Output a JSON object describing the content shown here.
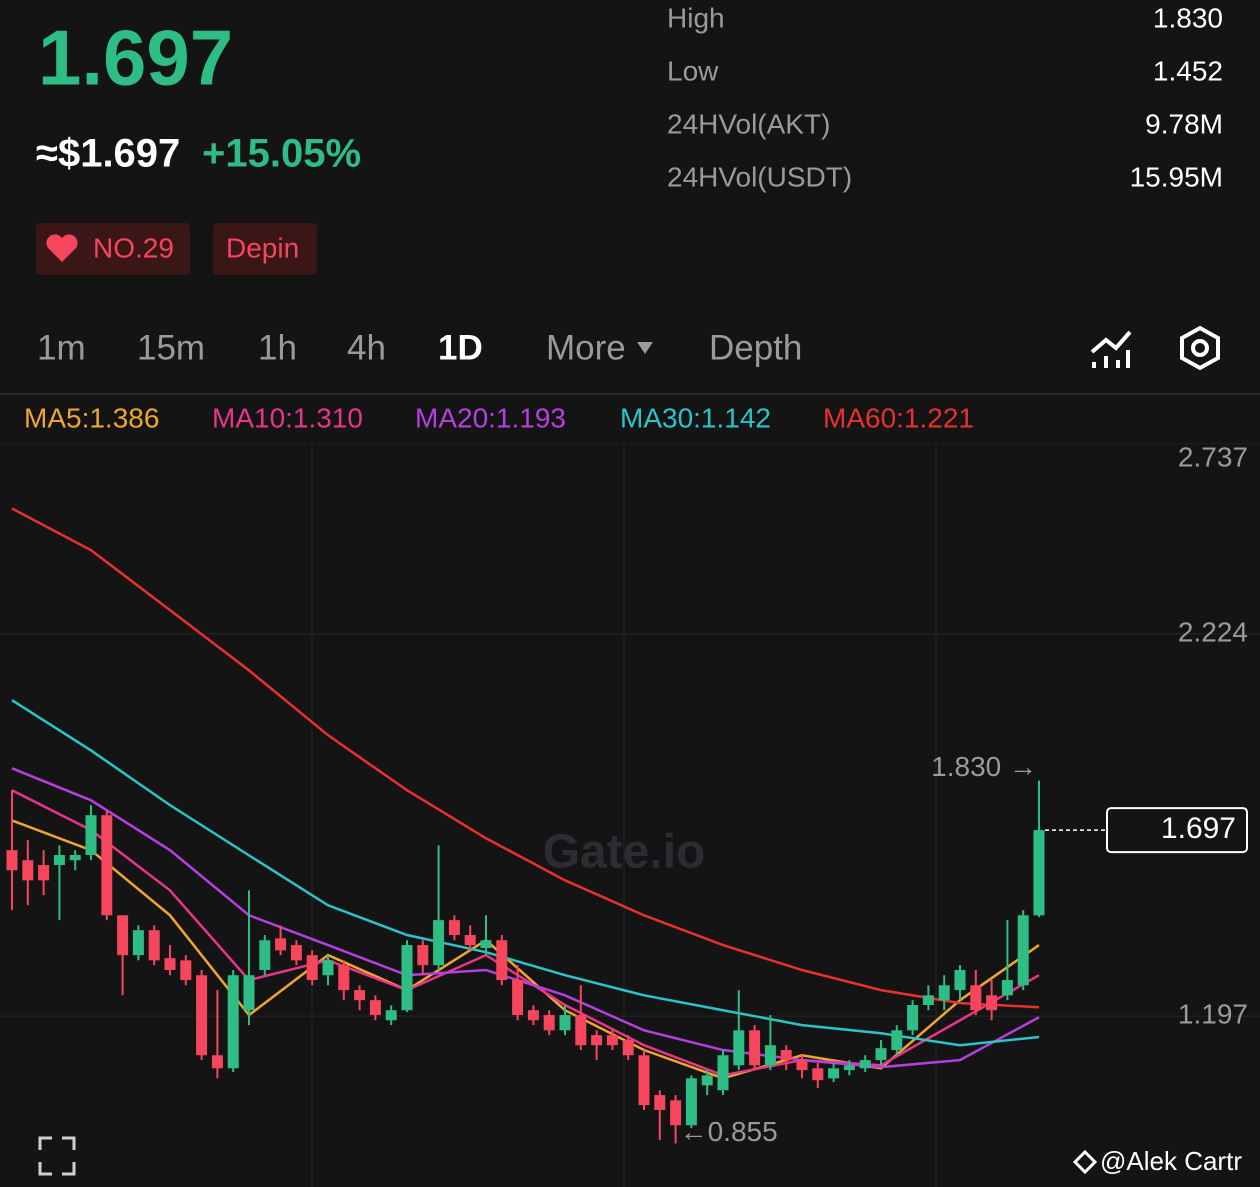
{
  "header": {
    "price": "1.697",
    "usd_price": "≈$1.697",
    "change": "+15.05%",
    "rank": "NO.29",
    "tag": "Depin"
  },
  "stats": [
    {
      "label": "High",
      "value": "1.830"
    },
    {
      "label": "Low",
      "value": "1.452"
    },
    {
      "label": "24HVol(AKT)",
      "value": "9.78M"
    },
    {
      "label": "24HVol(USDT)",
      "value": "15.95M"
    }
  ],
  "tabs": [
    "1m",
    "15m",
    "1h",
    "4h",
    "1D",
    "More",
    "Depth"
  ],
  "watermark": "Gate.io",
  "credit": "@Alek Cartr",
  "chart_data": {
    "type": "candlestick",
    "ylim": [
      0.738,
      2.737
    ],
    "yticks": [
      2.737,
      2.224,
      1.197
    ],
    "grid": true,
    "up_color": "#2ebd85",
    "down_color": "#f6465d",
    "open": [
      1.643,
      1.616,
      1.603,
      1.603,
      1.616,
      1.63,
      1.737,
      1.468,
      1.361,
      1.428,
      1.353,
      1.347,
      1.307,
      1.092,
      1.057,
      1.213,
      1.321,
      1.406,
      1.388,
      1.361,
      1.307,
      1.334,
      1.267,
      1.24,
      1.186,
      1.213,
      1.388,
      1.334,
      1.455,
      1.415,
      1.38,
      1.401,
      1.294,
      1.213,
      1.2,
      1.159,
      1.2,
      1.146,
      1.146,
      1.133,
      1.092,
      0.985,
      0.971,
      0.904,
      1.011,
      0.998,
      1.065,
      1.159,
      1.065,
      1.106,
      1.079,
      1.057,
      1.03,
      1.052,
      1.057,
      1.079,
      1.106,
      1.159,
      1.227,
      1.24,
      1.267,
      1.28,
      1.253,
      1.253,
      1.28,
      1.468
    ],
    "high": [
      1.804,
      1.67,
      1.643,
      1.656,
      1.643,
      1.764,
      1.75,
      1.468,
      1.441,
      1.441,
      1.388,
      1.361,
      1.321,
      1.267,
      1.321,
      1.535,
      1.415,
      1.441,
      1.401,
      1.374,
      1.361,
      1.347,
      1.28,
      1.253,
      1.226,
      1.401,
      1.401,
      1.656,
      1.468,
      1.441,
      1.468,
      1.415,
      1.334,
      1.226,
      1.213,
      1.226,
      1.28,
      1.159,
      1.159,
      1.146,
      1.106,
      0.998,
      0.985,
      1.038,
      1.052,
      1.106,
      1.267,
      1.173,
      1.2,
      1.119,
      1.092,
      1.071,
      1.071,
      1.079,
      1.092,
      1.133,
      1.173,
      1.24,
      1.28,
      1.307,
      1.334,
      1.321,
      1.294,
      1.455,
      1.482,
      1.83
    ],
    "low": [
      1.482,
      1.495,
      1.522,
      1.455,
      1.589,
      1.616,
      1.455,
      1.253,
      1.347,
      1.334,
      1.307,
      1.28,
      1.079,
      1.03,
      1.047,
      1.173,
      1.307,
      1.361,
      1.334,
      1.28,
      1.28,
      1.24,
      1.213,
      1.186,
      1.173,
      1.208,
      1.307,
      1.321,
      1.401,
      1.374,
      1.361,
      1.28,
      1.186,
      1.173,
      1.146,
      1.146,
      1.106,
      1.079,
      1.106,
      1.079,
      0.945,
      0.864,
      0.855,
      0.896,
      0.985,
      0.985,
      1.052,
      1.052,
      1.052,
      1.052,
      1.03,
      1.004,
      1.02,
      1.038,
      1.047,
      1.065,
      1.092,
      1.146,
      1.213,
      1.213,
      1.24,
      1.2,
      1.186,
      1.24,
      1.267,
      1.463
    ],
    "close": [
      1.589,
      1.562,
      1.562,
      1.63,
      1.63,
      1.737,
      1.468,
      1.361,
      1.428,
      1.347,
      1.321,
      1.294,
      1.092,
      1.057,
      1.307,
      1.307,
      1.401,
      1.374,
      1.347,
      1.294,
      1.347,
      1.267,
      1.24,
      1.2,
      1.213,
      1.388,
      1.334,
      1.455,
      1.415,
      1.388,
      1.401,
      1.294,
      1.2,
      1.186,
      1.159,
      1.2,
      1.119,
      1.119,
      1.119,
      1.092,
      0.958,
      0.945,
      0.904,
      1.03,
      1.038,
      1.092,
      1.159,
      1.065,
      1.119,
      1.079,
      1.052,
      1.025,
      1.057,
      1.065,
      1.079,
      1.111,
      1.159,
      1.227,
      1.253,
      1.28,
      1.321,
      1.213,
      1.213,
      1.294,
      1.468,
      1.697
    ],
    "series": [
      {
        "name": "MA5:1.386",
        "color": "#f0a530",
        "x": [
          0,
          5,
          10,
          15,
          20,
          25,
          30,
          35,
          40,
          45,
          50,
          55,
          60,
          65
        ],
        "values": [
          1.723,
          1.643,
          1.468,
          1.2,
          1.361,
          1.267,
          1.401,
          1.213,
          1.106,
          1.03,
          1.092,
          1.057,
          1.24,
          1.388
        ]
      },
      {
        "name": "MA10:1.310",
        "color": "#e8358a",
        "x": [
          0,
          5,
          10,
          15,
          20,
          25,
          30,
          35,
          40,
          45,
          50,
          55,
          60,
          65
        ],
        "values": [
          1.804,
          1.697,
          1.535,
          1.294,
          1.347,
          1.267,
          1.361,
          1.227,
          1.119,
          1.038,
          1.079,
          1.065,
          1.186,
          1.307
        ]
      },
      {
        "name": "MA20:1.193",
        "color": "#b73ee0",
        "x": [
          0,
          5,
          10,
          15,
          20,
          25,
          30,
          35,
          40,
          45,
          50,
          55,
          60,
          65
        ],
        "values": [
          1.863,
          1.777,
          1.643,
          1.468,
          1.388,
          1.307,
          1.321,
          1.253,
          1.159,
          1.106,
          1.079,
          1.06,
          1.079,
          1.194
        ]
      },
      {
        "name": "MA30:1.142",
        "color": "#2bc4c8",
        "x": [
          0,
          5,
          10,
          15,
          20,
          25,
          30,
          35,
          40,
          45,
          50,
          55,
          60,
          65
        ],
        "values": [
          2.046,
          1.911,
          1.764,
          1.629,
          1.495,
          1.415,
          1.369,
          1.307,
          1.253,
          1.213,
          1.173,
          1.151,
          1.119,
          1.141
        ]
      },
      {
        "name": "MA60:1.221",
        "color": "#e8312f",
        "x": [
          0,
          5,
          10,
          15,
          20,
          25,
          30,
          35,
          40,
          45,
          50,
          55,
          60,
          65
        ],
        "values": [
          2.561,
          2.449,
          2.288,
          2.126,
          1.952,
          1.804,
          1.675,
          1.562,
          1.468,
          1.388,
          1.321,
          1.267,
          1.232,
          1.221
        ]
      }
    ],
    "high_marker": {
      "value": 1.83,
      "label": "1.830 →"
    },
    "low_marker": {
      "value": 0.855,
      "label": "←0.855"
    },
    "last_price": {
      "value": 1.697,
      "label": "1.697"
    }
  }
}
